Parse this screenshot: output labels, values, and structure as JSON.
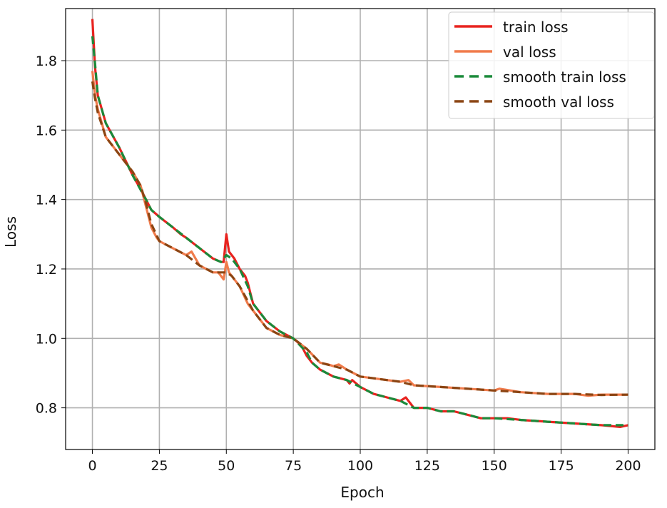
{
  "chart_data": {
    "type": "line",
    "title": "",
    "xlabel": "Epoch",
    "ylabel": "Loss",
    "xlim": [
      -10,
      210
    ],
    "ylim": [
      0.68,
      1.95
    ],
    "xticks": [
      0,
      25,
      50,
      75,
      100,
      125,
      150,
      175,
      200
    ],
    "yticks": [
      0.8,
      1.0,
      1.2,
      1.4,
      1.6,
      1.8
    ],
    "ytick_labels": [
      "0.8",
      "1.0",
      "1.2",
      "1.4",
      "1.6",
      "1.8"
    ],
    "grid": true,
    "legend_position": "top-right",
    "series": [
      {
        "name": "train loss",
        "color": "#e8231f",
        "style": "solid",
        "points": [
          [
            0,
            1.92
          ],
          [
            1,
            1.78
          ],
          [
            2,
            1.7
          ],
          [
            5,
            1.62
          ],
          [
            10,
            1.55
          ],
          [
            15,
            1.47
          ],
          [
            18,
            1.43
          ],
          [
            20,
            1.4
          ],
          [
            22,
            1.37
          ],
          [
            25,
            1.35
          ],
          [
            30,
            1.32
          ],
          [
            33,
            1.3
          ],
          [
            35,
            1.29
          ],
          [
            40,
            1.26
          ],
          [
            45,
            1.23
          ],
          [
            48,
            1.22
          ],
          [
            49,
            1.22
          ],
          [
            50,
            1.3
          ],
          [
            51,
            1.25
          ],
          [
            53,
            1.23
          ],
          [
            55,
            1.2
          ],
          [
            57,
            1.18
          ],
          [
            58,
            1.16
          ],
          [
            60,
            1.1
          ],
          [
            65,
            1.05
          ],
          [
            70,
            1.02
          ],
          [
            75,
            1.0
          ],
          [
            78,
            0.98
          ],
          [
            80,
            0.95
          ],
          [
            82,
            0.93
          ],
          [
            85,
            0.91
          ],
          [
            90,
            0.89
          ],
          [
            95,
            0.88
          ],
          [
            96,
            0.87
          ],
          [
            97,
            0.88
          ],
          [
            100,
            0.86
          ],
          [
            105,
            0.84
          ],
          [
            110,
            0.83
          ],
          [
            115,
            0.82
          ],
          [
            117,
            0.83
          ],
          [
            120,
            0.8
          ],
          [
            125,
            0.8
          ],
          [
            130,
            0.79
          ],
          [
            135,
            0.79
          ],
          [
            140,
            0.78
          ],
          [
            145,
            0.77
          ],
          [
            150,
            0.77
          ],
          [
            155,
            0.77
          ],
          [
            160,
            0.765
          ],
          [
            170,
            0.76
          ],
          [
            180,
            0.755
          ],
          [
            190,
            0.75
          ],
          [
            197,
            0.745
          ],
          [
            200,
            0.75
          ]
        ]
      },
      {
        "name": "val loss",
        "color": "#f07b4b",
        "style": "solid",
        "points": [
          [
            0,
            1.77
          ],
          [
            1,
            1.7
          ],
          [
            2,
            1.66
          ],
          [
            5,
            1.58
          ],
          [
            8,
            1.55
          ],
          [
            10,
            1.53
          ],
          [
            15,
            1.48
          ],
          [
            18,
            1.44
          ],
          [
            20,
            1.38
          ],
          [
            22,
            1.32
          ],
          [
            24,
            1.29
          ],
          [
            25,
            1.28
          ],
          [
            30,
            1.26
          ],
          [
            35,
            1.24
          ],
          [
            37,
            1.25
          ],
          [
            40,
            1.21
          ],
          [
            45,
            1.19
          ],
          [
            47,
            1.19
          ],
          [
            49,
            1.17
          ],
          [
            50,
            1.22
          ],
          [
            51,
            1.19
          ],
          [
            55,
            1.15
          ],
          [
            58,
            1.1
          ],
          [
            60,
            1.08
          ],
          [
            65,
            1.03
          ],
          [
            70,
            1.01
          ],
          [
            75,
            1.0
          ],
          [
            80,
            0.97
          ],
          [
            85,
            0.93
          ],
          [
            88,
            0.925
          ],
          [
            90,
            0.92
          ],
          [
            92,
            0.925
          ],
          [
            95,
            0.91
          ],
          [
            100,
            0.89
          ],
          [
            105,
            0.885
          ],
          [
            110,
            0.88
          ],
          [
            115,
            0.875
          ],
          [
            118,
            0.88
          ],
          [
            120,
            0.865
          ],
          [
            130,
            0.86
          ],
          [
            140,
            0.855
          ],
          [
            150,
            0.85
          ],
          [
            152,
            0.855
          ],
          [
            160,
            0.845
          ],
          [
            170,
            0.84
          ],
          [
            180,
            0.84
          ],
          [
            185,
            0.835
          ],
          [
            190,
            0.838
          ],
          [
            200,
            0.838
          ]
        ]
      },
      {
        "name": "smooth train loss",
        "color": "#1a8a3a",
        "style": "dashed",
        "points": [
          [
            0,
            1.87
          ],
          [
            1,
            1.79
          ],
          [
            2,
            1.7
          ],
          [
            5,
            1.62
          ],
          [
            10,
            1.55
          ],
          [
            15,
            1.47
          ],
          [
            20,
            1.4
          ],
          [
            22,
            1.37
          ],
          [
            25,
            1.35
          ],
          [
            30,
            1.32
          ],
          [
            35,
            1.29
          ],
          [
            40,
            1.26
          ],
          [
            45,
            1.23
          ],
          [
            48,
            1.22
          ],
          [
            50,
            1.24
          ],
          [
            52,
            1.23
          ],
          [
            55,
            1.2
          ],
          [
            58,
            1.15
          ],
          [
            60,
            1.1
          ],
          [
            65,
            1.05
          ],
          [
            70,
            1.02
          ],
          [
            75,
            1.0
          ],
          [
            80,
            0.96
          ],
          [
            82,
            0.93
          ],
          [
            85,
            0.91
          ],
          [
            90,
            0.89
          ],
          [
            95,
            0.88
          ],
          [
            100,
            0.86
          ],
          [
            105,
            0.84
          ],
          [
            110,
            0.83
          ],
          [
            115,
            0.82
          ],
          [
            120,
            0.8
          ],
          [
            125,
            0.8
          ],
          [
            130,
            0.79
          ],
          [
            135,
            0.79
          ],
          [
            140,
            0.78
          ],
          [
            145,
            0.77
          ],
          [
            150,
            0.77
          ],
          [
            160,
            0.765
          ],
          [
            170,
            0.76
          ],
          [
            180,
            0.755
          ],
          [
            190,
            0.75
          ],
          [
            200,
            0.75
          ]
        ]
      },
      {
        "name": "smooth val loss",
        "color": "#8b4513",
        "style": "dashed",
        "points": [
          [
            0,
            1.74
          ],
          [
            1,
            1.69
          ],
          [
            2,
            1.65
          ],
          [
            5,
            1.58
          ],
          [
            10,
            1.53
          ],
          [
            15,
            1.48
          ],
          [
            18,
            1.44
          ],
          [
            20,
            1.39
          ],
          [
            22,
            1.33
          ],
          [
            25,
            1.28
          ],
          [
            30,
            1.26
          ],
          [
            35,
            1.24
          ],
          [
            40,
            1.21
          ],
          [
            45,
            1.19
          ],
          [
            50,
            1.19
          ],
          [
            52,
            1.18
          ],
          [
            55,
            1.15
          ],
          [
            60,
            1.08
          ],
          [
            65,
            1.03
          ],
          [
            70,
            1.01
          ],
          [
            75,
            1.0
          ],
          [
            80,
            0.97
          ],
          [
            85,
            0.93
          ],
          [
            90,
            0.92
          ],
          [
            95,
            0.91
          ],
          [
            100,
            0.89
          ],
          [
            105,
            0.885
          ],
          [
            110,
            0.88
          ],
          [
            115,
            0.875
          ],
          [
            120,
            0.865
          ],
          [
            130,
            0.86
          ],
          [
            140,
            0.855
          ],
          [
            150,
            0.85
          ],
          [
            160,
            0.845
          ],
          [
            170,
            0.84
          ],
          [
            180,
            0.84
          ],
          [
            190,
            0.837
          ],
          [
            200,
            0.838
          ]
        ]
      }
    ]
  }
}
